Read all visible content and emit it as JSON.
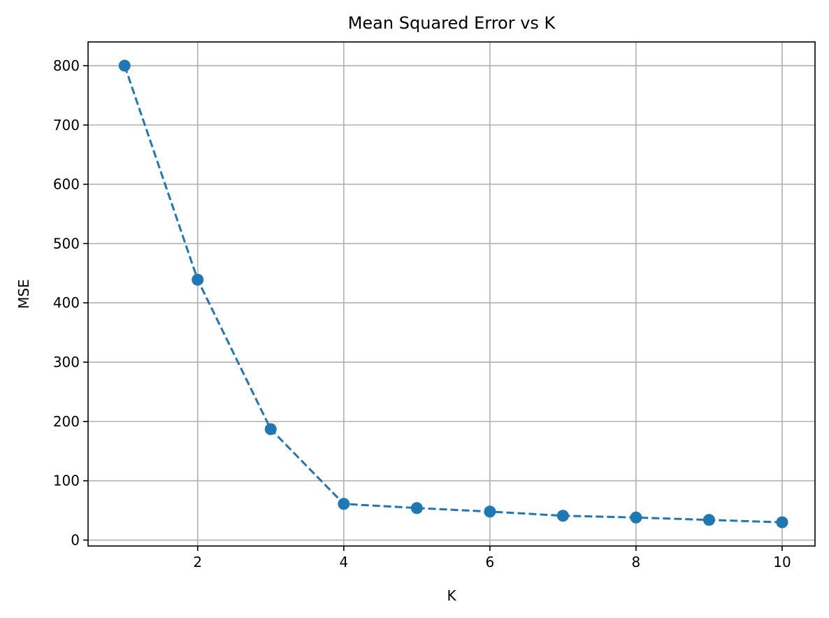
{
  "chart_data": {
    "type": "line",
    "title": "Mean Squared Error vs K",
    "xlabel": "K",
    "ylabel": "MSE",
    "xlim": [
      0.5,
      10.45
    ],
    "ylim": [
      -10,
      840
    ],
    "xticks": [
      2,
      4,
      6,
      8,
      10
    ],
    "yticks": [
      0,
      100,
      200,
      300,
      400,
      500,
      600,
      700,
      800
    ],
    "grid": true,
    "series": [
      {
        "color": "#1f77b4",
        "line_style": "dashed",
        "marker": "circle",
        "x": [
          1,
          2,
          3,
          4,
          5,
          6,
          7,
          8,
          9,
          10
        ],
        "y": [
          800,
          439,
          187,
          61,
          54,
          48,
          41,
          38,
          34,
          30
        ]
      }
    ]
  }
}
